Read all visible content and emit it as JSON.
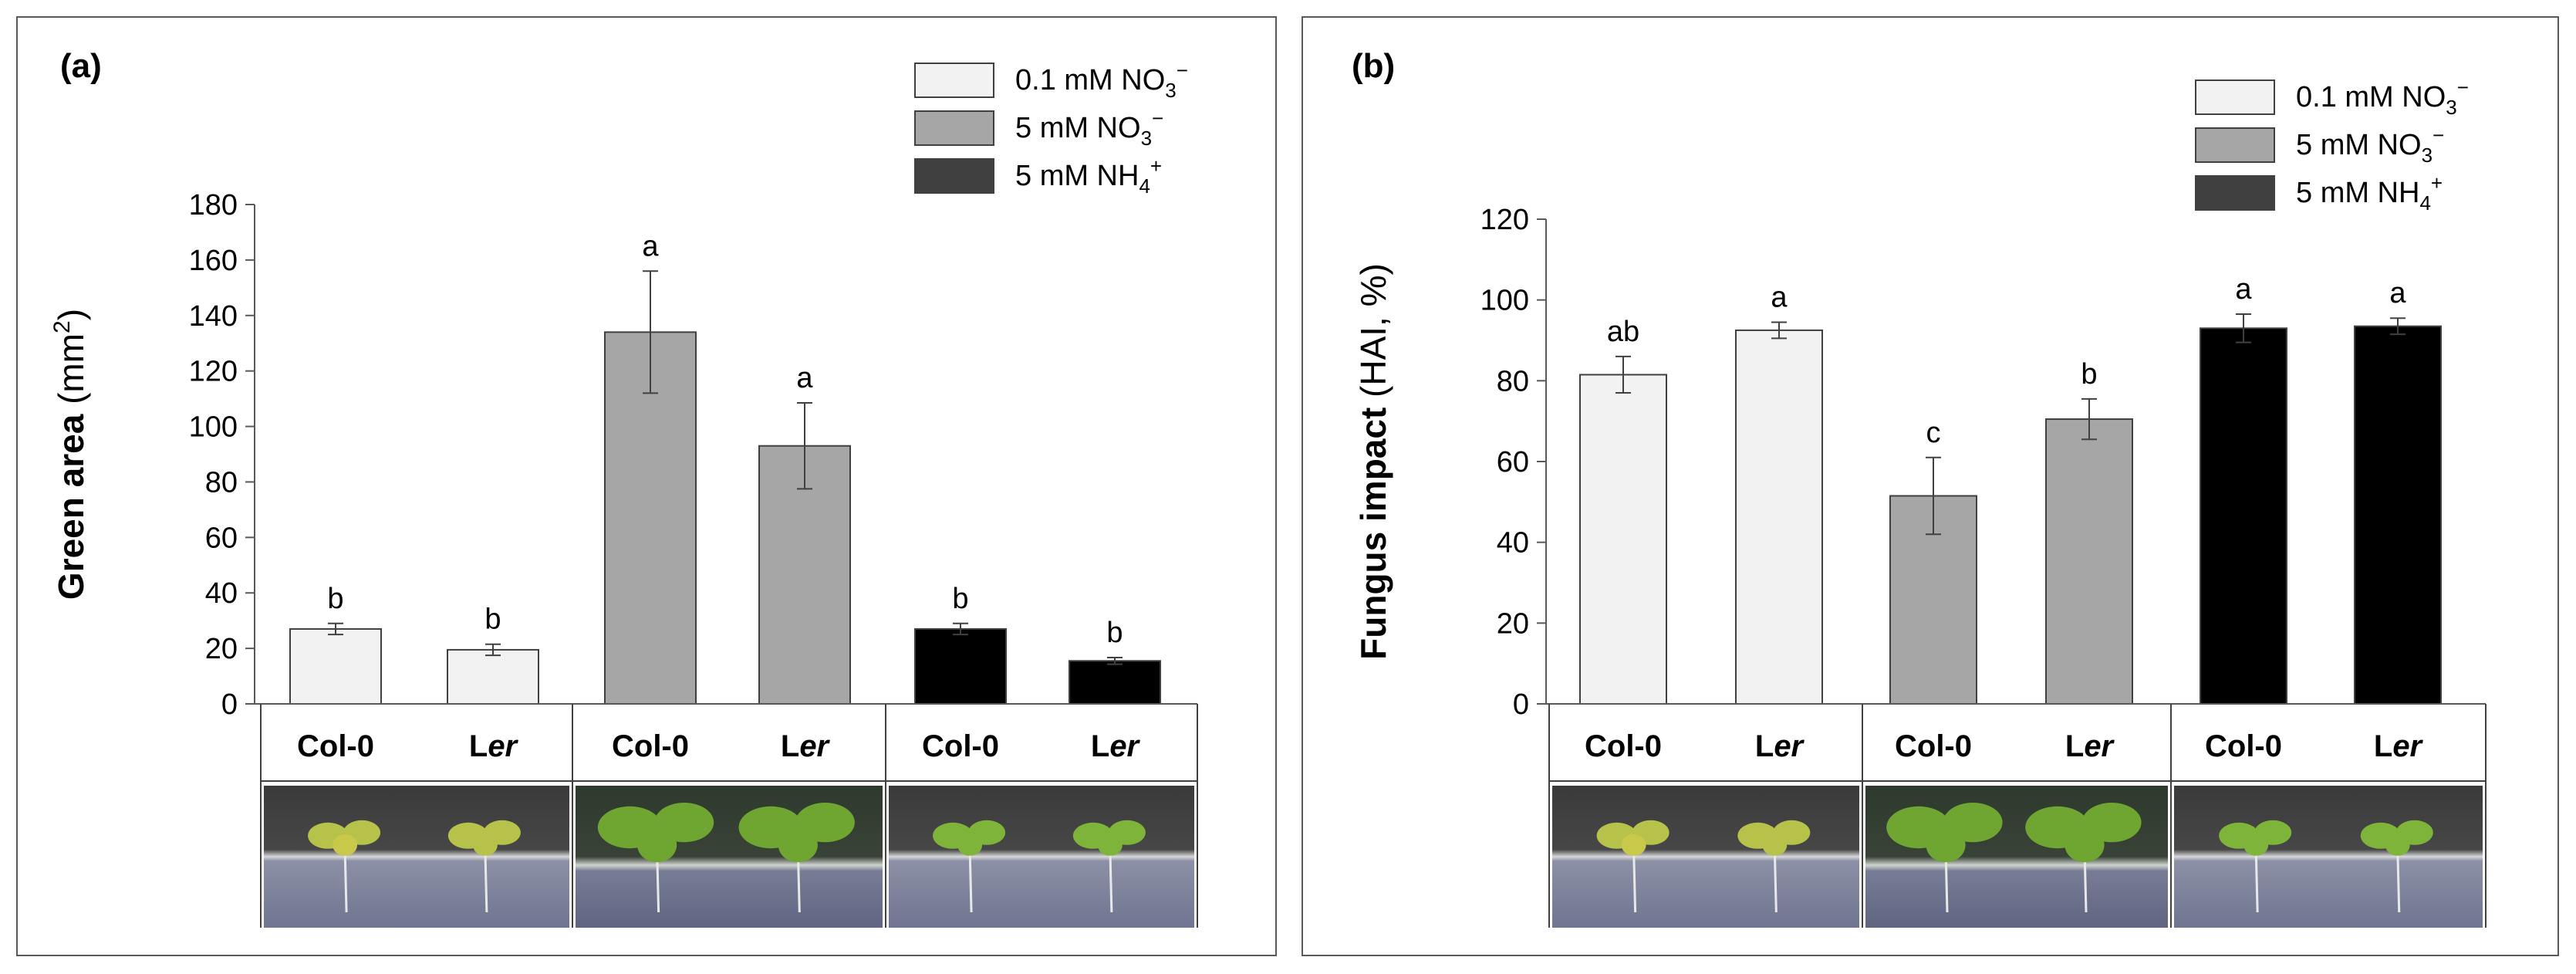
{
  "colors": {
    "low_no3": "#f2f2f2",
    "high_no3": "#a6a6a6",
    "nh4": "#000000",
    "legend_nh4": "#404040",
    "axis": "#595959",
    "frame": "#595959"
  },
  "legend": [
    {
      "prefix": "0.1 mM NO",
      "sub": "3",
      "sup": "−"
    },
    {
      "prefix": "5 mM NO",
      "sub": "3",
      "sup": "−"
    },
    {
      "prefix": "5 mM NH",
      "sub": "4",
      "sup": "+"
    }
  ],
  "chart_data": [
    {
      "type": "bar",
      "panel_label": "(a)",
      "ylabel": {
        "bold": "Green area",
        "normal": " (mm",
        "sup": "2",
        "close": ")"
      },
      "ylim": [
        0,
        180
      ],
      "yticks": [
        "0",
        "20",
        "40",
        "60",
        "80",
        "100",
        "120",
        "140",
        "160",
        "180"
      ],
      "yticks_values": [
        0,
        20,
        40,
        60,
        80,
        100,
        120,
        140,
        160,
        180
      ],
      "groups": [
        {
          "treatment": "0.1 mM NO3-",
          "series_index": 0,
          "genotypes": [
            {
              "first": "Col-0",
              "italic": ""
            },
            {
              "first": "L",
              "italic": "er"
            }
          ]
        },
        {
          "treatment": "5 mM NO3-",
          "series_index": 1,
          "genotypes": [
            {
              "first": "Col-0",
              "italic": ""
            },
            {
              "first": "L",
              "italic": "er"
            }
          ]
        },
        {
          "treatment": "5 mM NH4+",
          "series_index": 2,
          "genotypes": [
            {
              "first": "Col-0",
              "italic": ""
            },
            {
              "first": "L",
              "italic": "er"
            }
          ]
        }
      ],
      "bars": [
        {
          "genotype": "Col-0",
          "series_index": 0,
          "value": 27,
          "error": 2,
          "letter": "b"
        },
        {
          "genotype": "Ler",
          "series_index": 0,
          "value": 19.5,
          "error": 2,
          "letter": "b"
        },
        {
          "genotype": "Col-0",
          "series_index": 1,
          "value": 134,
          "error": 22,
          "letter": "a"
        },
        {
          "genotype": "Ler",
          "series_index": 1,
          "value": 93,
          "error": 15.5,
          "letter": "a"
        },
        {
          "genotype": "Col-0",
          "series_index": 2,
          "value": 27,
          "error": 2,
          "letter": "b"
        },
        {
          "genotype": "Ler",
          "series_index": 2,
          "value": 15.5,
          "error": 1.2,
          "letter": "b"
        }
      ]
    },
    {
      "type": "bar",
      "panel_label": "(b)",
      "ylabel": {
        "bold": "Fungus impact",
        "normal": " (HAI, %)",
        "sup": "",
        "close": ""
      },
      "ylim": [
        0,
        120
      ],
      "yticks": [
        "0",
        "20",
        "40",
        "60",
        "80",
        "100",
        "120"
      ],
      "yticks_values": [
        0,
        20,
        40,
        60,
        80,
        100,
        120
      ],
      "groups": [
        {
          "treatment": "0.1 mM NO3-",
          "series_index": 0,
          "genotypes": [
            {
              "first": "Col-0",
              "italic": ""
            },
            {
              "first": "L",
              "italic": "er"
            }
          ]
        },
        {
          "treatment": "5 mM NO3-",
          "series_index": 1,
          "genotypes": [
            {
              "first": "Col-0",
              "italic": ""
            },
            {
              "first": "L",
              "italic": "er"
            }
          ]
        },
        {
          "treatment": "5 mM NH4+",
          "series_index": 2,
          "genotypes": [
            {
              "first": "Col-0",
              "italic": ""
            },
            {
              "first": "L",
              "italic": "er"
            }
          ]
        }
      ],
      "bars": [
        {
          "genotype": "Col-0",
          "series_index": 0,
          "value": 81.5,
          "error": 4.5,
          "letter": "ab"
        },
        {
          "genotype": "Ler",
          "series_index": 0,
          "value": 92.5,
          "error": 2,
          "letter": "a"
        },
        {
          "genotype": "Col-0",
          "series_index": 1,
          "value": 51.5,
          "error": 9.5,
          "letter": "c"
        },
        {
          "genotype": "Ler",
          "series_index": 1,
          "value": 70.5,
          "error": 5,
          "letter": "b"
        },
        {
          "genotype": "Col-0",
          "series_index": 2,
          "value": 93,
          "error": 3.5,
          "letter": "a"
        },
        {
          "genotype": "Ler",
          "series_index": 2,
          "value": 93.5,
          "error": 2,
          "letter": "a"
        }
      ]
    }
  ]
}
